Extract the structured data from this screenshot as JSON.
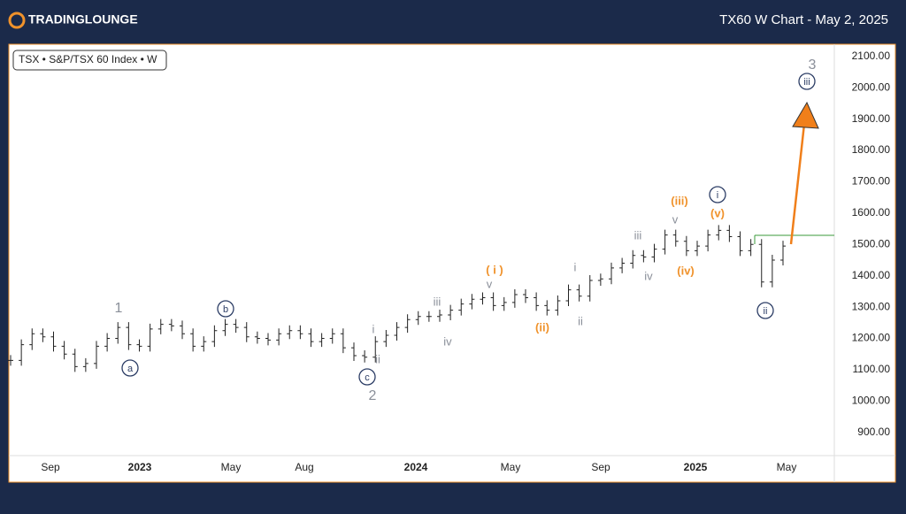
{
  "header": {
    "brand": "TRADINGLOUNGE",
    "title": "TX60 W Chart - May 2, 2025"
  },
  "chart_data": {
    "type": "bar-ticks",
    "symbol_label": "TSX • S&P/TSX 60 Index • W",
    "color": "#222222",
    "values": [
      1130,
      1180,
      1215,
      1205,
      1175,
      1150,
      1110,
      1120,
      1175,
      1200,
      1235,
      1180,
      1175,
      1230,
      1245,
      1240,
      1215,
      1175,
      1190,
      1225,
      1245,
      1235,
      1205,
      1200,
      1195,
      1215,
      1225,
      1215,
      1190,
      1200,
      1215,
      1170,
      1145,
      1140,
      1190,
      1210,
      1235,
      1260,
      1270,
      1270,
      1275,
      1290,
      1310,
      1325,
      1330,
      1305,
      1315,
      1340,
      1330,
      1305,
      1290,
      1320,
      1355,
      1335,
      1385,
      1390,
      1425,
      1440,
      1465,
      1460,
      1485,
      1530,
      1510,
      1480,
      1495,
      1530,
      1545,
      1525,
      1480,
      1500,
      1380,
      1450,
      1495
    ],
    "ylim": [
      826,
      2139
    ],
    "yticks": [
      {
        "value": 2100,
        "label": "2100.00"
      },
      {
        "value": 2000,
        "label": "2000.00"
      },
      {
        "value": 1900,
        "label": "1900.00"
      },
      {
        "value": 1800,
        "label": "1800.00"
      },
      {
        "value": 1700,
        "label": "1700.00"
      },
      {
        "value": 1600,
        "label": "1600.00"
      },
      {
        "value": 1500,
        "label": "1500.00"
      },
      {
        "value": 1400,
        "label": "1400.00"
      },
      {
        "value": 1300,
        "label": "1300.00"
      },
      {
        "value": 1200,
        "label": "1200.00"
      },
      {
        "value": 1100,
        "label": "1100.00"
      },
      {
        "value": 1000,
        "label": "1000.00"
      },
      {
        "value": 900,
        "label": "900.00"
      }
    ],
    "x_labels": [
      "Sep",
      "2023",
      "May",
      "Aug",
      "2024",
      "May",
      "Sep",
      "2025",
      "May"
    ],
    "annotations": [
      {
        "text": "1",
        "color": "#8a8f99"
      },
      {
        "text": "a",
        "color": "#2d3e66",
        "circled": true
      },
      {
        "text": "b",
        "color": "#2d3e66",
        "circled": true
      },
      {
        "text": "c",
        "color": "#2d3e66",
        "circled": true
      },
      {
        "text": "2",
        "color": "#8a8f99"
      },
      {
        "text": "i",
        "color": "#8a8f99"
      },
      {
        "text": "ii",
        "color": "#8a8f99"
      },
      {
        "text": "iii",
        "color": "#8a8f99"
      },
      {
        "text": "iv",
        "color": "#8a8f99"
      },
      {
        "text": "v",
        "color": "#8a8f99"
      },
      {
        "text": "( i )",
        "color": "#f0922b"
      },
      {
        "text": "(ii)",
        "color": "#f0922b"
      },
      {
        "text": "i",
        "color": "#8a8f99"
      },
      {
        "text": "ii",
        "color": "#8a8f99"
      },
      {
        "text": "iii",
        "color": "#8a8f99"
      },
      {
        "text": "iv",
        "color": "#8a8f99"
      },
      {
        "text": "v",
        "color": "#8a8f99"
      },
      {
        "text": "(iii)",
        "color": "#f0922b"
      },
      {
        "text": "(iv)",
        "color": "#f0922b"
      },
      {
        "text": "(v)",
        "color": "#f0922b"
      },
      {
        "text": "i",
        "color": "#2d3e66",
        "circled": true
      },
      {
        "text": "ii",
        "color": "#2d3e66",
        "circled": true
      },
      {
        "text": "3",
        "color": "#8a8f99"
      },
      {
        "text": "iii",
        "color": "#2d3e66",
        "circled": true
      }
    ]
  }
}
